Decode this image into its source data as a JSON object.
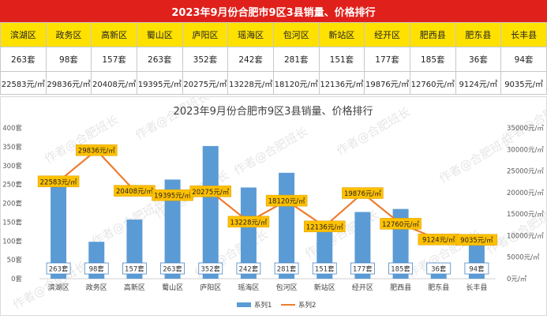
{
  "table": {
    "title": "2023年9月份合肥市9区3县销量、价格排行",
    "districts": [
      "滨湖区",
      "政务区",
      "高新区",
      "蜀山区",
      "庐阳区",
      "瑶海区",
      "包河区",
      "新站区",
      "经开区",
      "肥西县",
      "肥东县",
      "长丰县"
    ],
    "volumes": [
      "263套",
      "98套",
      "157套",
      "263套",
      "352套",
      "242套",
      "281套",
      "151套",
      "177套",
      "185套",
      "36套",
      "94套"
    ],
    "prices": [
      "22583元/㎡",
      "29836元/㎡",
      "20408元/㎡",
      "19395元/㎡",
      "20275元/㎡",
      "13228元/㎡",
      "18120元/㎡",
      "12136元/㎡",
      "19876元/㎡",
      "12760元/㎡",
      "9124元/㎡",
      "9035元/㎡"
    ]
  },
  "chart_data": {
    "type": "bar",
    "title": "2023年9月份合肥市9区3县销量、价格排行",
    "categories": [
      "滨湖区",
      "政务区",
      "高新区",
      "蜀山区",
      "庐阳区",
      "瑶海区",
      "包河区",
      "新站区",
      "经开区",
      "肥西县",
      "肥东县",
      "长丰县"
    ],
    "series": [
      {
        "name": "系列1",
        "type": "bar",
        "axis": "left",
        "values": [
          263,
          98,
          157,
          263,
          352,
          242,
          281,
          151,
          177,
          185,
          36,
          94
        ],
        "labels": [
          "263套",
          "98套",
          "157套",
          "263套",
          "352套",
          "242套",
          "281套",
          "151套",
          "177套",
          "185套",
          "36套",
          "94套"
        ],
        "color": "#5b9bd5"
      },
      {
        "name": "系列2",
        "type": "line",
        "axis": "right",
        "values": [
          22583,
          29836,
          20408,
          19395,
          20275,
          13228,
          18120,
          12136,
          19876,
          12760,
          9124,
          9035
        ],
        "labels": [
          "22583元/㎡",
          "29836元/㎡",
          "20408元/㎡",
          "19395元/㎡",
          "20275元/㎡",
          "13228元/㎡",
          "18120元/㎡",
          "12136元/㎡",
          "19876元/㎡",
          "12760元/㎡",
          "9124元/㎡",
          "9035元/㎡"
        ],
        "color": "#ed7d31"
      }
    ],
    "y_left": {
      "min": 0,
      "max": 400,
      "ticks": [
        "0套",
        "50套",
        "100套",
        "150套",
        "200套",
        "250套",
        "300套",
        "350套",
        "400套"
      ]
    },
    "y_right": {
      "min": 0,
      "max": 35000,
      "ticks": [
        "0元/㎡",
        "5000元/㎡",
        "10000元/㎡",
        "15000元/㎡",
        "20000元/㎡",
        "25000元/㎡",
        "30000元/㎡",
        "35000元/㎡"
      ]
    },
    "legend": {
      "position": "bottom",
      "items": [
        "系列1",
        "系列2"
      ]
    },
    "grid": false
  },
  "watermark": "作者@合肥班长",
  "colors": {
    "header_bg": "#e0201b",
    "header_row_bg": "#ffe100",
    "bar": "#5b9bd5",
    "line": "#ed7d31",
    "label_bg": "#ffc000"
  }
}
